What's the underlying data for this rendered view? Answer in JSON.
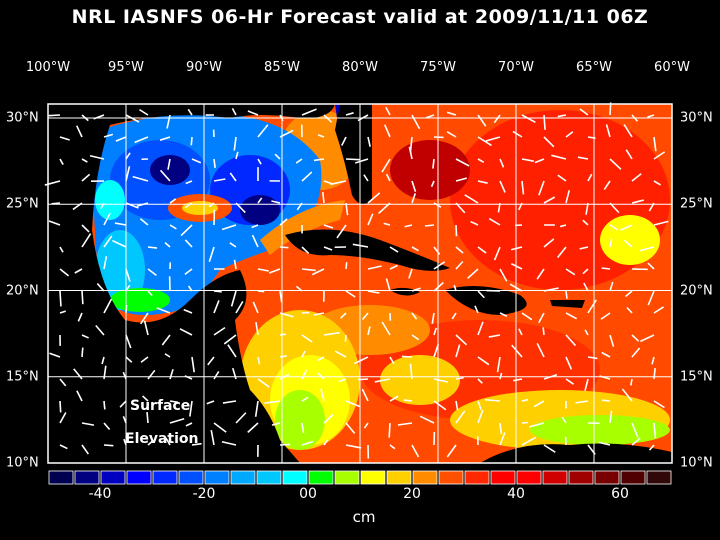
{
  "title": "NRL IASNFS  06-Hr Forecast valid at 2009/11/11 06Z",
  "lon_labels": [
    "100°W",
    "95°W",
    "90°W",
    "85°W",
    "80°W",
    "75°W",
    "70°W",
    "65°W",
    "60°W"
  ],
  "lat_labels": [
    "30°N",
    "25°N",
    "20°N",
    "15°N",
    "10°N"
  ],
  "annotation": {
    "line1": "Surface",
    "line2": "Elevation"
  },
  "colorbar": {
    "units": "cm",
    "tick_labels": [
      "-40",
      "-20",
      "00",
      "20",
      "40",
      "60"
    ],
    "min": -50,
    "max": 70,
    "step": 5,
    "colors": [
      "#000050",
      "#000080",
      "#0000c0",
      "#0000ff",
      "#0028ff",
      "#0050ff",
      "#0080ff",
      "#00a8ff",
      "#00c8ff",
      "#00ffff",
      "#00ff00",
      "#a8ff00",
      "#ffff00",
      "#ffd000",
      "#ff8c00",
      "#ff5000",
      "#ff2800",
      "#ff0000",
      "#ff0000",
      "#d00000",
      "#a00000",
      "#780000",
      "#500000",
      "#300808"
    ]
  }
}
